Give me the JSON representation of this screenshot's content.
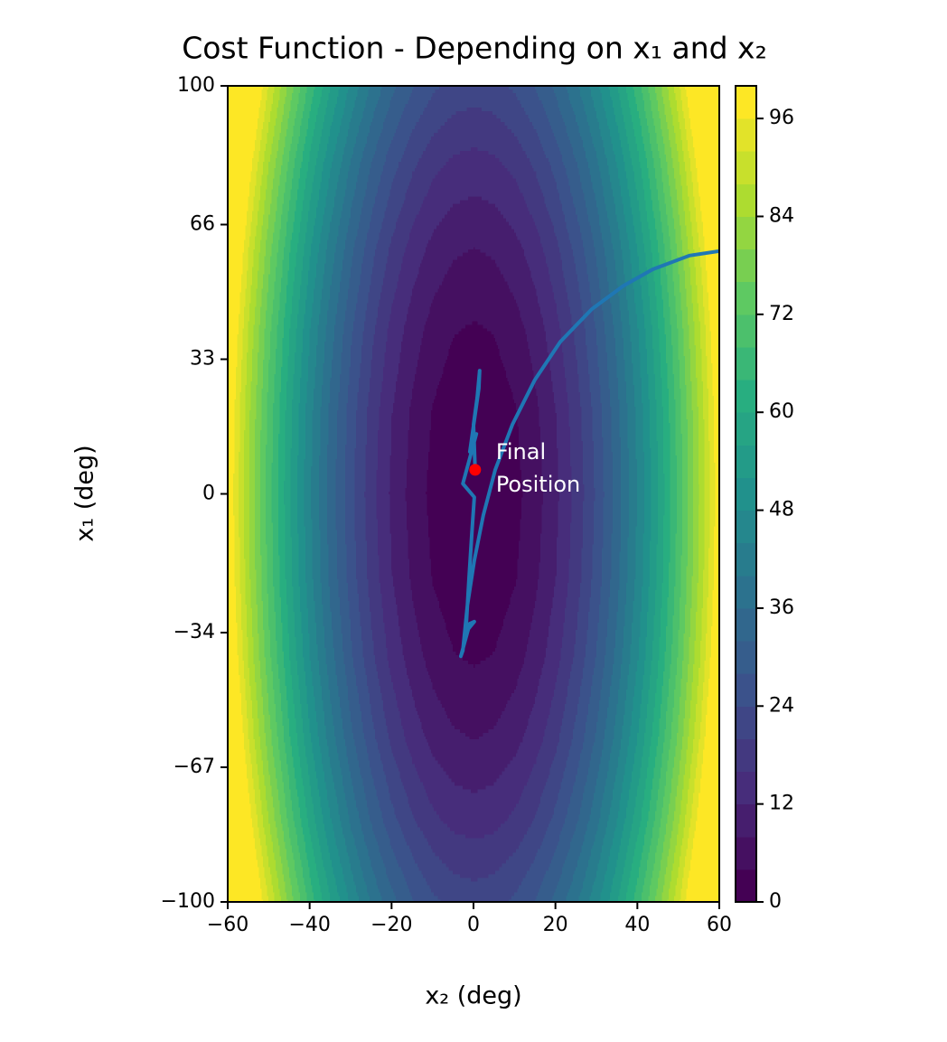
{
  "chart_data": {
    "type": "contour",
    "title": "Cost Function - Depending on x₁ and x₂",
    "xlabel": "x₂ (deg)",
    "ylabel": "x₁ (deg)",
    "xlim": [
      -60,
      60
    ],
    "ylim": [
      -100,
      100
    ],
    "xticks": [
      {
        "value": -60,
        "label": "−60"
      },
      {
        "value": -40,
        "label": "−40"
      },
      {
        "value": -20,
        "label": "−20"
      },
      0,
      20,
      40,
      60
    ],
    "yticks": [
      {
        "value": -100,
        "label": "−100"
      },
      {
        "value": -67,
        "label": "−67"
      },
      {
        "value": -34,
        "label": "−34"
      },
      0,
      33,
      66,
      100
    ],
    "x": [
      -60,
      -55,
      -50,
      -45,
      -40,
      -35,
      -30,
      -25,
      -20,
      -15,
      -10,
      -5,
      0,
      5,
      10,
      15,
      20,
      25,
      30,
      35,
      40,
      45,
      50,
      55,
      60
    ],
    "y": [
      -100,
      -80,
      -60,
      -40,
      -20,
      0,
      20,
      40,
      60,
      80,
      100
    ],
    "z": [
      [
        122,
        106,
        91.4,
        78.3,
        66.4,
        56,
        47,
        39.4,
        33.1,
        28.3,
        24.8,
        22.7,
        22,
        22.7,
        24.8,
        28.3,
        33.1,
        39.4,
        47,
        56,
        66.4,
        78.3,
        91.4,
        106,
        122
      ],
      [
        114.1,
        98.1,
        83.5,
        70.4,
        58.5,
        48.1,
        39.1,
        31.5,
        25.2,
        20.4,
        16.9,
        14.8,
        14.1,
        14.8,
        16.9,
        20.4,
        25.2,
        31.5,
        39.1,
        48.1,
        58.5,
        70.4,
        83.5,
        98.1,
        114.1
      ],
      [
        107.9,
        91.9,
        77.3,
        64.2,
        52.3,
        41.9,
        32.9,
        25.3,
        19,
        14.2,
        10.7,
        8.6,
        7.9,
        8.6,
        10.7,
        14.2,
        19,
        25.3,
        32.9,
        41.9,
        52.3,
        64.2,
        77.3,
        91.9,
        107.9
      ],
      [
        103.5,
        87.5,
        72.9,
        59.8,
        47.9,
        37.5,
        28.5,
        20.9,
        14.6,
        9.8,
        6.3,
        4.2,
        3.5,
        4.2,
        6.3,
        9.8,
        14.6,
        20.9,
        28.5,
        37.5,
        47.9,
        59.8,
        72.9,
        87.5,
        103.5
      ],
      [
        100.9,
        84.9,
        70.3,
        57.2,
        45.3,
        34.9,
        25.9,
        18.3,
        12,
        7.2,
        3.7,
        1.6,
        0.9,
        1.6,
        3.7,
        7.2,
        12,
        18.3,
        25.9,
        34.9,
        45.3,
        57.2,
        70.3,
        84.9,
        100.9
      ],
      [
        100,
        84,
        69.4,
        56.3,
        44.4,
        34,
        25,
        17.4,
        11.1,
        6.3,
        2.8,
        0.7,
        0,
        0.7,
        2.8,
        6.3,
        11.1,
        17.4,
        25,
        34,
        44.4,
        56.3,
        69.4,
        84,
        100
      ],
      [
        100.9,
        84.9,
        70.3,
        57.2,
        45.3,
        34.9,
        25.9,
        18.3,
        12,
        7.2,
        3.7,
        1.6,
        0.9,
        1.6,
        3.7,
        7.2,
        12,
        18.3,
        25.9,
        34.9,
        45.3,
        57.2,
        70.3,
        84.9,
        100.9
      ],
      [
        103.5,
        87.5,
        72.9,
        59.8,
        47.9,
        37.5,
        28.5,
        20.9,
        14.6,
        9.8,
        6.3,
        4.2,
        3.5,
        4.2,
        6.3,
        9.8,
        14.6,
        20.9,
        28.5,
        37.5,
        47.9,
        59.8,
        72.9,
        87.5,
        103.5
      ],
      [
        107.9,
        91.9,
        77.3,
        64.2,
        52.3,
        41.9,
        32.9,
        25.3,
        19,
        14.2,
        10.7,
        8.6,
        7.9,
        8.6,
        10.7,
        14.2,
        19,
        25.3,
        32.9,
        41.9,
        52.3,
        64.2,
        77.3,
        91.9,
        107.9
      ],
      [
        114.1,
        98.1,
        83.5,
        70.4,
        58.5,
        48.1,
        39.1,
        31.5,
        25.2,
        20.4,
        16.9,
        14.8,
        14.1,
        14.8,
        16.9,
        20.4,
        25.2,
        31.5,
        39.1,
        48.1,
        58.5,
        70.4,
        83.5,
        98.1,
        114.1
      ],
      [
        122,
        106,
        91.4,
        78.3,
        66.4,
        56,
        47,
        39.4,
        33.1,
        28.3,
        24.8,
        22.7,
        22,
        22.7,
        24.8,
        28.3,
        33.1,
        39.4,
        47,
        56,
        66.4,
        78.3,
        91.4,
        106,
        122
      ]
    ],
    "levels": [
      0,
      4,
      8,
      12,
      16,
      20,
      24,
      28,
      32,
      36,
      40,
      44,
      48,
      52,
      56,
      60,
      64,
      68,
      72,
      76,
      80,
      84,
      88,
      92,
      96,
      100
    ],
    "colormap": "viridis",
    "colorbar": {
      "lim": [
        0,
        100
      ],
      "ticks": [
        0,
        12,
        24,
        36,
        48,
        60,
        72,
        84,
        96
      ]
    },
    "path": {
      "color": "#1f77b4",
      "x": [
        60,
        52.7,
        43.7,
        36.6,
        28.9,
        21.2,
        15.0,
        9.5,
        5.3,
        2.4,
        0.2,
        -1.5,
        -2.6,
        -3.1,
        -0.9,
        0.2,
        -2.0,
        -0.9,
        -1.8,
        -1.1,
        -0.4,
        0.2,
        -2.6,
        0.7,
        -0.9,
        1.3,
        1.5,
        0.9,
        0,
        0.4
      ],
      "y": [
        59.5,
        58.4,
        55.0,
        51.0,
        45.3,
        37.3,
        28.0,
        17.0,
        5.9,
        -5.2,
        -16.3,
        -27.4,
        -38.4,
        -39.8,
        -31.8,
        -31.3,
        -34.0,
        -31.8,
        -32.7,
        -20.7,
        -9.6,
        -0.8,
        2.5,
        14.7,
        10.3,
        25.8,
        30.2,
        23.6,
        17.0,
        5.9
      ]
    },
    "final_point": {
      "x": 0.4,
      "y": 5.9,
      "color": "#ff0000"
    },
    "annotation": [
      "Final",
      "Position"
    ]
  }
}
